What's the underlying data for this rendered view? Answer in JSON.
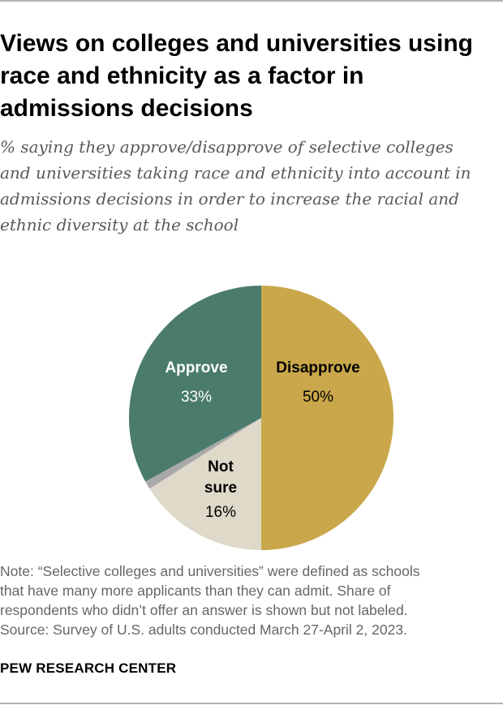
{
  "title": [
    "Views on colleges and universities using",
    "race and ethnicity as a factor in",
    "admissions decisions"
  ],
  "subtitle": [
    "% saying they approve/disapprove of selective colleges",
    "and universities taking race and ethnicity into account in",
    "admissions decisions in order to increase the racial and",
    "ethnic diversity at the school"
  ],
  "chart_data": {
    "type": "pie",
    "slices": [
      {
        "name": "Disapprove",
        "value": 50,
        "label": "50%",
        "color": "#c9a74a",
        "label_color": "#000000"
      },
      {
        "name": "Not sure",
        "name_lines": [
          "Not",
          "sure"
        ],
        "value": 16,
        "label": "16%",
        "color": "#ded9c9",
        "label_color": "#000000"
      },
      {
        "value": 1,
        "label": "",
        "color": "#a8a8a8"
      },
      {
        "name": "Approve",
        "value": 33,
        "label": "33%",
        "color": "#4a7b6c",
        "label_color": "#ffffff"
      }
    ]
  },
  "note": [
    "Note: “Selective colleges and universities” were defined as schools",
    "that have many more applicants than they can admit. Share of",
    "respondents who didn’t offer an answer is shown but not labeled.",
    "Source: Survey of U.S. adults conducted March 27-April 2, 2023."
  ],
  "brand": "PEW RESEARCH CENTER"
}
